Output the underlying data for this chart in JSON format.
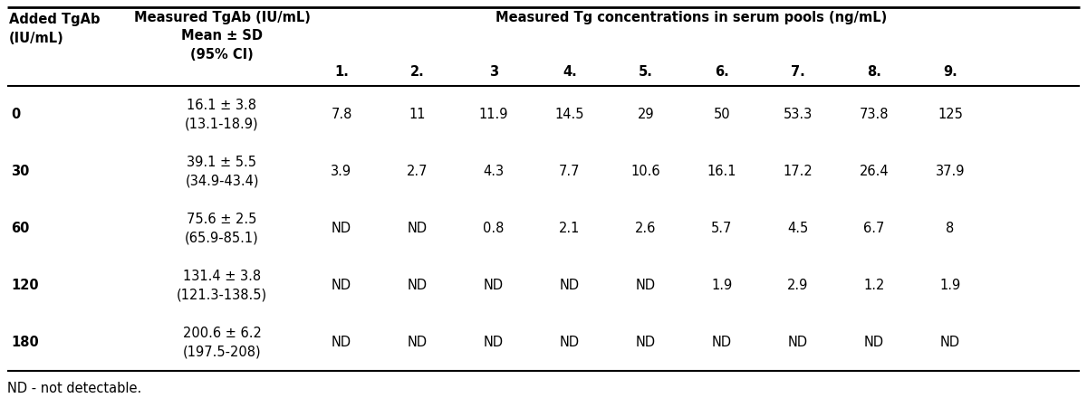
{
  "sub_headers": [
    "1.",
    "2.",
    "3",
    "4.",
    "5.",
    "6.",
    "7.",
    "8.",
    "9."
  ],
  "rows": [
    {
      "added": "0",
      "measured": "16.1 ± 3.8\n(13.1-18.9)",
      "pools": [
        "7.8",
        "11",
        "11.9",
        "14.5",
        "29",
        "50",
        "53.3",
        "73.8",
        "125"
      ]
    },
    {
      "added": "30",
      "measured": "39.1 ± 5.5\n(34.9-43.4)",
      "pools": [
        "3.9",
        "2.7",
        "4.3",
        "7.7",
        "10.6",
        "16.1",
        "17.2",
        "26.4",
        "37.9"
      ]
    },
    {
      "added": "60",
      "measured": "75.6 ± 2.5\n(65.9-85.1)",
      "pools": [
        "ND",
        "ND",
        "0.8",
        "2.1",
        "2.6",
        "5.7",
        "4.5",
        "6.7",
        "8"
      ]
    },
    {
      "added": "120",
      "measured": "131.4 ± 3.8\n(121.3-138.5)",
      "pools": [
        "ND",
        "ND",
        "ND",
        "ND",
        "ND",
        "1.9",
        "2.9",
        "1.2",
        "1.9"
      ]
    },
    {
      "added": "180",
      "measured": "200.6 ± 6.2\n(197.5-208)",
      "pools": [
        "ND",
        "ND",
        "ND",
        "ND",
        "ND",
        "ND",
        "ND",
        "ND",
        "ND"
      ]
    }
  ],
  "footnote": "ND - not detectable.",
  "bg_color": "#ffffff",
  "text_color": "#000000",
  "header_fontsize": 10.5,
  "body_fontsize": 10.5
}
